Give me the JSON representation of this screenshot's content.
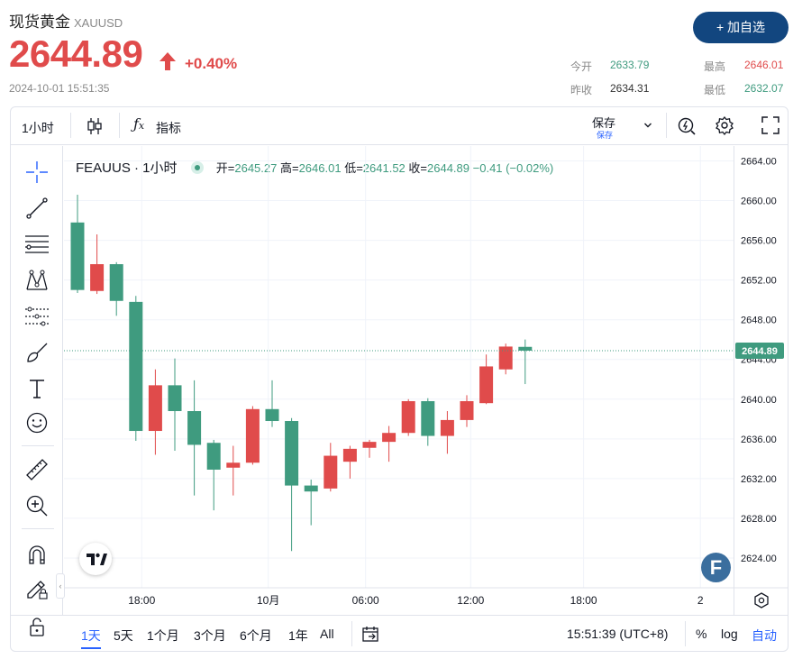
{
  "header": {
    "title": "现货黄金",
    "symbol": "XAUUSD",
    "price": "2644.89",
    "change": "+0.40%",
    "timestamp": "2024-10-01 15:51:35",
    "add_button": "+ 加自选",
    "stats": {
      "open_label": "今开",
      "open_value": "2633.79",
      "high_label": "最高",
      "high_value": "2646.01",
      "prev_close_label": "昨收",
      "prev_close_value": "2634.31",
      "low_label": "最低",
      "low_value": "2632.07"
    }
  },
  "toolbar": {
    "interval": "1小时",
    "indicators": "指标",
    "save": "保存",
    "save_sub": "保存"
  },
  "legend": {
    "symbol": "FEAUUS · 1小时",
    "open_label": "开=",
    "open": "2645.27",
    "high_label": "高=",
    "high": "2646.01",
    "low_label": "低=",
    "low": "2641.52",
    "close_label": "收=",
    "close": "2644.89",
    "change": "−0.41 (−0.02%)"
  },
  "bottom_bar": {
    "ranges": [
      "1天",
      "5天",
      "1个月",
      "3个月",
      "6个月",
      "1年",
      "All"
    ],
    "active_range": "1天",
    "clock": "15:51:39 (UTC+8)",
    "percent": "%",
    "log": "log",
    "auto": "自动"
  },
  "badge": "F",
  "colors": {
    "up": "#e04b4b",
    "down": "#3f9b7f",
    "brand": "#12467f"
  },
  "icons": [
    "crosshair-icon",
    "trend-line-icon",
    "fib-icon",
    "pattern-icon",
    "forecast-icon",
    "brush-icon",
    "text-icon",
    "emoji-icon",
    "ruler-icon",
    "zoom-in-icon",
    "magnet-icon",
    "lock-pencil-icon",
    "lock-icon",
    "candle-type-icon",
    "fx-icon",
    "alert-icon",
    "settings-icon",
    "fullscreen-icon",
    "calendar-range-icon",
    "chevron-down-icon",
    "axis-settings-icon"
  ],
  "chart_data": {
    "type": "candlestick",
    "y_ticks": [
      "2664.00",
      "2660.00",
      "2656.00",
      "2652.00",
      "2648.00",
      "2644.00",
      "2640.00",
      "2636.00",
      "2632.00",
      "2628.00",
      "2624.00"
    ],
    "ylim": [
      2621,
      2665.5
    ],
    "x_ticks": [
      {
        "label": "18:00",
        "index": 3.3
      },
      {
        "label": "10月",
        "index": 9.8
      },
      {
        "label": "06:00",
        "index": 14.8
      },
      {
        "label": "12:00",
        "index": 20.2
      },
      {
        "label": "18:00",
        "index": 26.0
      },
      {
        "label": "2",
        "index": 32.0
      }
    ],
    "last_price": "2644.89",
    "last_price_value": 2644.89,
    "candles": [
      {
        "o": 2657.8,
        "h": 2660.6,
        "l": 2650.7,
        "c": 2651.0
      },
      {
        "o": 2650.9,
        "h": 2656.6,
        "l": 2650.6,
        "c": 2653.6
      },
      {
        "o": 2653.6,
        "h": 2653.8,
        "l": 2648.4,
        "c": 2649.9
      },
      {
        "o": 2649.8,
        "h": 2650.4,
        "l": 2635.8,
        "c": 2636.8
      },
      {
        "o": 2636.8,
        "h": 2643.0,
        "l": 2634.4,
        "c": 2641.4
      },
      {
        "o": 2641.4,
        "h": 2644.1,
        "l": 2634.8,
        "c": 2638.8
      },
      {
        "o": 2638.8,
        "h": 2641.9,
        "l": 2630.3,
        "c": 2635.4
      },
      {
        "o": 2635.6,
        "h": 2635.9,
        "l": 2628.8,
        "c": 2632.9
      },
      {
        "o": 2633.1,
        "h": 2635.3,
        "l": 2630.3,
        "c": 2633.6
      },
      {
        "o": 2633.6,
        "h": 2639.3,
        "l": 2633.4,
        "c": 2639.0
      },
      {
        "o": 2639.0,
        "h": 2641.9,
        "l": 2637.2,
        "c": 2637.8
      },
      {
        "o": 2637.8,
        "h": 2638.1,
        "l": 2624.7,
        "c": 2631.3
      },
      {
        "o": 2631.3,
        "h": 2631.9,
        "l": 2627.3,
        "c": 2630.7
      },
      {
        "o": 2631.0,
        "h": 2635.6,
        "l": 2630.7,
        "c": 2634.3
      },
      {
        "o": 2633.7,
        "h": 2635.3,
        "l": 2632.0,
        "c": 2635.0
      },
      {
        "o": 2635.1,
        "h": 2635.9,
        "l": 2634.1,
        "c": 2635.7
      },
      {
        "o": 2635.7,
        "h": 2637.3,
        "l": 2633.7,
        "c": 2636.6
      },
      {
        "o": 2636.6,
        "h": 2640.0,
        "l": 2636.3,
        "c": 2639.8
      },
      {
        "o": 2639.8,
        "h": 2640.1,
        "l": 2635.3,
        "c": 2636.3
      },
      {
        "o": 2636.3,
        "h": 2638.8,
        "l": 2634.5,
        "c": 2637.9
      },
      {
        "o": 2637.9,
        "h": 2640.4,
        "l": 2637.2,
        "c": 2639.8
      },
      {
        "o": 2639.6,
        "h": 2644.5,
        "l": 2639.5,
        "c": 2643.3
      },
      {
        "o": 2643.0,
        "h": 2645.6,
        "l": 2642.5,
        "c": 2645.3
      },
      {
        "o": 2645.27,
        "h": 2646.01,
        "l": 2641.52,
        "c": 2644.89
      }
    ]
  }
}
